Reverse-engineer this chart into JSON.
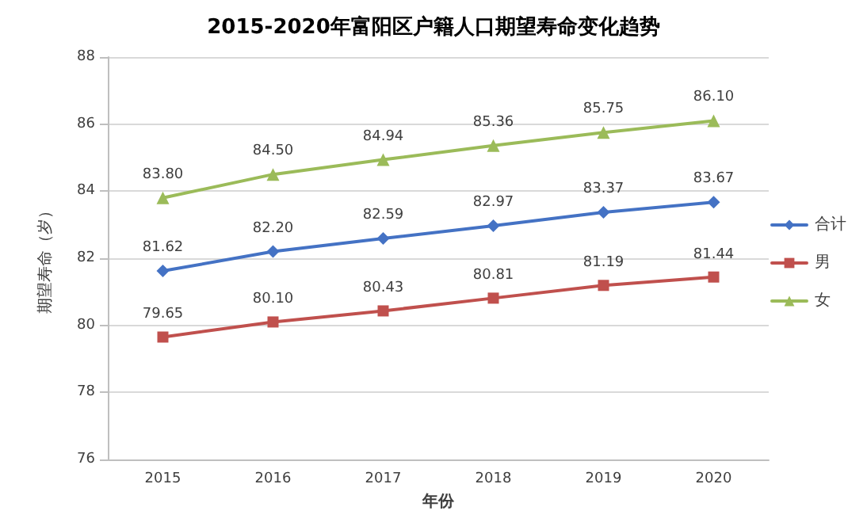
{
  "chart_data": {
    "type": "line",
    "title": "2015-2020年富阳区户籍人口期望寿命变化趋势",
    "xlabel": "年份",
    "ylabel": "期望寿命（岁）",
    "categories": [
      "2015",
      "2016",
      "2017",
      "2018",
      "2019",
      "2020"
    ],
    "series": [
      {
        "name": "合计",
        "color": "#4472c4",
        "marker": "diamond",
        "values": [
          81.62,
          82.2,
          82.59,
          82.97,
          83.37,
          83.67
        ],
        "value_labels": [
          "81.62",
          "82.20",
          "82.59",
          "82.97",
          "83.37",
          "83.67"
        ]
      },
      {
        "name": "男",
        "color": "#c0504d",
        "marker": "square",
        "values": [
          79.65,
          80.1,
          80.43,
          80.81,
          81.19,
          81.44
        ],
        "value_labels": [
          "79.65",
          "80.10",
          "80.43",
          "80.81",
          "81.19",
          "81.44"
        ]
      },
      {
        "name": "女",
        "color": "#9bbb59",
        "marker": "triangle",
        "values": [
          83.8,
          84.5,
          84.94,
          85.36,
          85.75,
          86.1
        ],
        "value_labels": [
          "83.80",
          "84.50",
          "84.94",
          "85.36",
          "85.75",
          "86.10"
        ]
      }
    ],
    "ylim": [
      76,
      88
    ],
    "yticks": [
      76,
      78,
      80,
      82,
      84,
      86,
      88
    ],
    "grid": "y",
    "legend": "right"
  }
}
